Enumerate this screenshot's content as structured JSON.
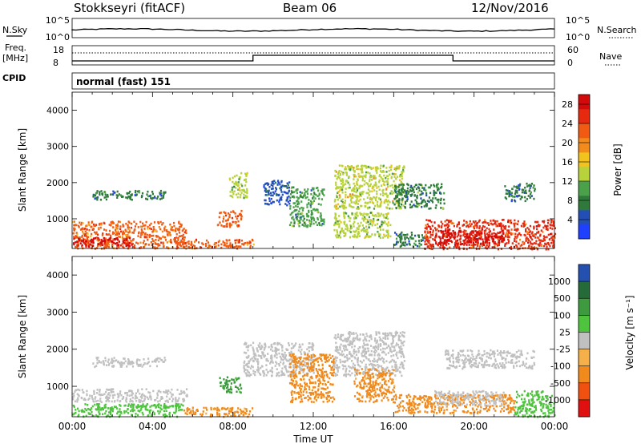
{
  "header": {
    "station": "Stokkseyri (fitACF)",
    "beam": "Beam 06",
    "date": "12/Nov/2016"
  },
  "strips": {
    "nsky_label": "N.Sky",
    "nsky_ticks": [
      "10^5",
      "10^0"
    ],
    "nsearch_label": "N.Search",
    "nsearch_ticks": [
      "10^5",
      "10^0"
    ],
    "freq_label": "Freq.",
    "freq_unit": "[MHz]",
    "freq_ticks": [
      "18",
      "8"
    ],
    "nave_label": "Nave",
    "nave_ticks": [
      "60",
      "0"
    ],
    "cpid_label": "CPID",
    "cpid_value": "normal (fast) 151"
  },
  "colors": {
    "power_scale": [
      "#2040ff",
      "#234fb5",
      "#2f7a3a",
      "#4aa14a",
      "#b8d23c",
      "#f2c21e",
      "#f28a1c",
      "#f05a12",
      "#e52a10",
      "#d40a0a"
    ],
    "velocity_scale": [
      "#e01010",
      "#f05010",
      "#f08a1c",
      "#f6b04a",
      "#c0c0c0",
      "#4ec43e",
      "#3e9a3e",
      "#256b3a",
      "#2450b0"
    ],
    "ground_scatter": "#c0c0c0"
  },
  "chart_data": [
    {
      "type": "heatmap",
      "panel": "power",
      "ylabel": "Slant Range [km]",
      "ylim": [
        180,
        4500
      ],
      "yticks": [
        "1000",
        "2000",
        "3000",
        "4000"
      ],
      "xlim": [
        0,
        24
      ],
      "xticks": [
        "00:00",
        "04:00",
        "08:00",
        "12:00",
        "16:00",
        "20:00",
        "00:00"
      ],
      "colorbar_label": "Power [dB]",
      "colorbar_ticks": [
        "4",
        "8",
        "12",
        "16",
        "20",
        "24",
        "28"
      ],
      "colorbar_range": [
        0,
        30
      ],
      "patches": [
        {
          "t0": 0.0,
          "t1": 5.7,
          "r0": 200,
          "r1": 950,
          "level": 22
        },
        {
          "t0": 0.0,
          "t1": 3.0,
          "r0": 250,
          "r1": 500,
          "level": 28
        },
        {
          "t0": 5.5,
          "t1": 9.0,
          "r0": 200,
          "r1": 450,
          "level": 22
        },
        {
          "t0": 7.2,
          "t1": 8.4,
          "r0": 800,
          "r1": 1250,
          "level": 22
        },
        {
          "t0": 7.8,
          "t1": 8.7,
          "r0": 1600,
          "r1": 2300,
          "level": 12
        },
        {
          "t0": 1.0,
          "t1": 4.6,
          "r0": 1550,
          "r1": 1800,
          "level": 6
        },
        {
          "t0": 9.5,
          "t1": 10.8,
          "r0": 1400,
          "r1": 2100,
          "level": 5
        },
        {
          "t0": 10.8,
          "t1": 12.5,
          "r0": 800,
          "r1": 1900,
          "level": 10
        },
        {
          "t0": 13.0,
          "t1": 15.8,
          "r0": 500,
          "r1": 1200,
          "level": 12
        },
        {
          "t0": 13.0,
          "t1": 16.5,
          "r0": 1300,
          "r1": 2500,
          "level": 14
        },
        {
          "t0": 16.0,
          "t1": 18.5,
          "r0": 1300,
          "r1": 2000,
          "level": 8
        },
        {
          "t0": 16.0,
          "t1": 17.5,
          "r0": 250,
          "r1": 650,
          "level": 6
        },
        {
          "t0": 17.5,
          "t1": 24.0,
          "r0": 180,
          "r1": 1000,
          "level": 24
        },
        {
          "t0": 18.0,
          "t1": 21.5,
          "r0": 300,
          "r1": 700,
          "level": 29
        },
        {
          "t0": 21.5,
          "t1": 23.0,
          "r0": 1500,
          "r1": 2000,
          "level": 6
        }
      ]
    },
    {
      "type": "heatmap",
      "panel": "velocity",
      "ylabel": "Slant Range [km]",
      "ylim": [
        180,
        4500
      ],
      "yticks": [
        "1000",
        "2000",
        "3000",
        "4000"
      ],
      "xlim": [
        0,
        24
      ],
      "xticks": [
        "00:00",
        "04:00",
        "08:00",
        "12:00",
        "16:00",
        "20:00",
        "00:00"
      ],
      "xlabel": "Time UT",
      "colorbar_label": "Velocity [m s⁻¹]",
      "colorbar_ticks": [
        "1000",
        "500",
        "100",
        "25",
        "-25",
        "-100",
        "-500",
        "-1000"
      ],
      "colorbar_range": [
        -1000,
        1000
      ],
      "patches": [
        {
          "t0": 0.0,
          "t1": 5.7,
          "r0": 600,
          "r1": 950,
          "level": "ground"
        },
        {
          "t0": 0.0,
          "t1": 5.5,
          "r0": 200,
          "r1": 550,
          "level": 60
        },
        {
          "t0": 5.5,
          "t1": 9.0,
          "r0": 200,
          "r1": 450,
          "level": -150
        },
        {
          "t0": 7.3,
          "t1": 8.4,
          "r0": 850,
          "r1": 1300,
          "level": 150
        },
        {
          "t0": 1.0,
          "t1": 4.6,
          "r0": 1550,
          "r1": 1800,
          "level": "ground"
        },
        {
          "t0": 8.5,
          "t1": 12.0,
          "r0": 1300,
          "r1": 2200,
          "level": "ground"
        },
        {
          "t0": 10.8,
          "t1": 13.0,
          "r0": 600,
          "r1": 1900,
          "level": -300
        },
        {
          "t0": 13.0,
          "t1": 16.5,
          "r0": 1300,
          "r1": 2500,
          "level": "ground"
        },
        {
          "t0": 14.0,
          "t1": 16.0,
          "r0": 600,
          "r1": 1500,
          "level": -200
        },
        {
          "t0": 16.0,
          "t1": 22.0,
          "r0": 300,
          "r1": 800,
          "level": -200
        },
        {
          "t0": 18.0,
          "t1": 21.5,
          "r0": 500,
          "r1": 900,
          "level": "ground"
        },
        {
          "t0": 18.5,
          "t1": 23.0,
          "r0": 1500,
          "r1": 2000,
          "level": "ground"
        },
        {
          "t0": 22.0,
          "t1": 24.0,
          "r0": 200,
          "r1": 900,
          "level": 60
        }
      ]
    }
  ]
}
